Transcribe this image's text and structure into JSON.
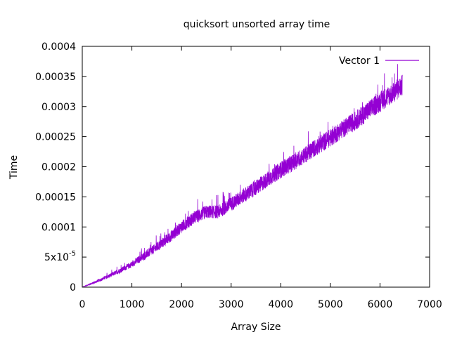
{
  "chart_data": {
    "type": "line",
    "title": "quicksort unsorted array time",
    "xlabel": "Array Size",
    "ylabel": "Time",
    "xlim": [
      0,
      7000
    ],
    "ylim": [
      0,
      0.0004
    ],
    "x_ticks": [
      {
        "value": 0,
        "label": "0"
      },
      {
        "value": 1000,
        "label": "1000"
      },
      {
        "value": 2000,
        "label": "2000"
      },
      {
        "value": 3000,
        "label": "3000"
      },
      {
        "value": 4000,
        "label": "4000"
      },
      {
        "value": 5000,
        "label": "5000"
      },
      {
        "value": 6000,
        "label": "6000"
      },
      {
        "value": 7000,
        "label": "7000"
      }
    ],
    "y_ticks": [
      {
        "value": 0,
        "label": "0"
      },
      {
        "value": 5e-05,
        "label": "5x10",
        "sup": "-5"
      },
      {
        "value": 0.0001,
        "label": "0.0001"
      },
      {
        "value": 0.00015,
        "label": "0.00015"
      },
      {
        "value": 0.0002,
        "label": "0.0002"
      },
      {
        "value": 0.00025,
        "label": "0.00025"
      },
      {
        "value": 0.0003,
        "label": "0.0003"
      },
      {
        "value": 0.00035,
        "label": "0.00035"
      },
      {
        "value": 0.0004,
        "label": "0.0004"
      }
    ],
    "grid": false,
    "legend_position": "top-right",
    "series": [
      {
        "name": "Vector 1",
        "color": "#9400d3",
        "x": [
          0,
          250,
          500,
          750,
          1000,
          1250,
          1500,
          1750,
          2000,
          2250,
          2500,
          2750,
          3000,
          3250,
          3500,
          3750,
          4000,
          4250,
          4500,
          4750,
          5000,
          5250,
          5500,
          5750,
          6000,
          6250,
          6450
        ],
        "y": [
          0,
          8e-06,
          1.7e-05,
          2.7e-05,
          3.8e-05,
          5.2e-05,
          6.6e-05,
          8.2e-05,
          0.0001,
          0.000115,
          0.000125,
          0.000125,
          0.000138,
          0.000152,
          0.000165,
          0.00018,
          0.000195,
          0.000207,
          0.00022,
          0.000235,
          0.000248,
          0.000263,
          0.000276,
          0.000292,
          0.000308,
          0.000322,
          0.000335
        ],
        "spread": [
          0,
          2e-06,
          3e-06,
          4e-06,
          5e-06,
          7e-06,
          8e-06,
          9e-06,
          1e-05,
          1.1e-05,
          1.1e-05,
          1.1e-05,
          1.2e-05,
          1.2e-05,
          1.3e-05,
          1.3e-05,
          1.4e-05,
          1.4e-05,
          1.4e-05,
          1.5e-05,
          1.5e-05,
          1.5e-05,
          1.6e-05,
          1.6e-05,
          1.7e-05,
          1.7e-05,
          1.8e-05
        ]
      }
    ]
  }
}
